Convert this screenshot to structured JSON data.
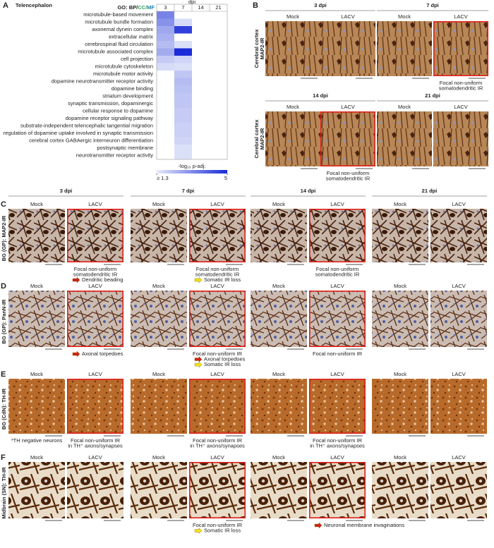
{
  "panel_a": {
    "letter": "A",
    "title": "Telencephalon",
    "go_label": [
      {
        "text": "GO: BP/",
        "color": "#222222"
      },
      {
        "text": "CC/",
        "color": "#3aa55a"
      },
      {
        "text": "MF",
        "color": "#1a7fb0"
      }
    ],
    "column_title": "dpi",
    "columns": [
      "3",
      "7",
      "14",
      "21"
    ],
    "colors": [
      "#e6eafb",
      "#1b2bd8"
    ],
    "rows": [
      {
        "label": "microtubule-based movement",
        "color": "#222222",
        "values": [
          3.3,
          null,
          null,
          null
        ]
      },
      {
        "label": "microtubule bundle formation",
        "color": "#222222",
        "values": [
          3.0,
          1.6,
          null,
          null
        ]
      },
      {
        "label": "axonemal dynein complex",
        "color": "#3aa55a",
        "values": [
          2.6,
          4.6,
          null,
          null
        ]
      },
      {
        "label": "extracellular matrix",
        "color": "#3aa55a",
        "values": [
          2.4,
          null,
          null,
          null
        ]
      },
      {
        "label": "cerebrospinal fluid circulation",
        "color": "#222222",
        "values": [
          2.2,
          1.5,
          null,
          null
        ]
      },
      {
        "label": "microtubule associated complex",
        "color": "#3aa55a",
        "values": [
          2.5,
          5,
          null,
          null
        ]
      },
      {
        "label": "cell projection",
        "color": "#3aa55a",
        "values": [
          1.9,
          1.7,
          null,
          null
        ]
      },
      {
        "label": "microtubule cytoskeleton",
        "color": "#3aa55a",
        "values": [
          1.6,
          1.5,
          null,
          null
        ]
      },
      {
        "label": "microtubule motor activity",
        "color": "#1a7fb0",
        "values": [
          null,
          2.0,
          null,
          null
        ]
      },
      {
        "label": "dopamine neurotransmitter receptor activity",
        "color": "#1a7fb0",
        "values": [
          null,
          2.2,
          null,
          null
        ]
      },
      {
        "label": "dopamine binding",
        "color": "#1a7fb0",
        "values": [
          null,
          2.1,
          null,
          null
        ]
      },
      {
        "label": "striatum development",
        "color": "#222222",
        "values": [
          null,
          2.0,
          null,
          null
        ]
      },
      {
        "label": "synaptic transmission, dopaminergic",
        "color": "#222222",
        "values": [
          null,
          2.0,
          null,
          null
        ]
      },
      {
        "label": "cellular response to dopamine",
        "color": "#222222",
        "values": [
          null,
          1.9,
          null,
          null
        ]
      },
      {
        "label": "dopamine receptor signaling pathway",
        "color": "#222222",
        "values": [
          null,
          1.9,
          null,
          null
        ]
      },
      {
        "label": "substrate-independent telencephalic tangential migration",
        "color": "#222222",
        "values": [
          null,
          1.8,
          null,
          null
        ]
      },
      {
        "label": "regulation of dopamine uptake involved in synaptic transmission",
        "color": "#222222",
        "values": [
          null,
          1.8,
          null,
          null
        ]
      },
      {
        "label": "cerebral cortex GABAergic interneuron differentiation",
        "color": "#222222",
        "values": [
          null,
          1.7,
          null,
          null
        ]
      },
      {
        "label": "postsynaptic membrane",
        "color": "#3aa55a",
        "values": [
          null,
          1.5,
          null,
          null
        ]
      },
      {
        "label": "neurotransmitter receptor activity",
        "color": "#1a7fb0",
        "values": [
          null,
          1.5,
          null,
          null
        ]
      }
    ],
    "legend_title": "-log₁₀ p-adj:",
    "scale": [
      {
        "value": 1.3,
        "label": "≥ 1.3"
      },
      5
    ]
  },
  "panel_b": {
    "letter": "B",
    "rows": [
      {
        "side_label": [
          "Cerebral cortex",
          "MAP2-IR"
        ],
        "groups": [
          {
            "title": "3 dpi",
            "images": [
              {
                "label": "Mock"
              },
              {
                "label": "LACV"
              }
            ]
          },
          {
            "title": "7 dpi",
            "images": [
              {
                "label": "Mock"
              },
              {
                "label": "LACV",
                "highlight": true,
                "caption": [
                  "Focal non-uniform",
                  "somatodendritic IR"
                ]
              }
            ]
          }
        ]
      },
      {
        "side_label": [
          "Cerebral cortex",
          "MAP2-IR"
        ],
        "groups": [
          {
            "title": "14 dpi",
            "images": [
              {
                "label": "Mock"
              },
              {
                "label": "LACV",
                "highlight": true,
                "caption": [
                  "Focal non-uniform",
                  "somatodendritic IR"
                ]
              }
            ]
          },
          {
            "title": "21 dpi",
            "images": [
              {
                "label": "Mock"
              },
              {
                "label": "LACV"
              }
            ]
          }
        ]
      }
    ]
  },
  "panels_cf": {
    "headers": [
      "3 dpi",
      "7 dpi",
      "14 dpi",
      "21 dpi"
    ],
    "panels": [
      {
        "letter": "C",
        "side_label": "BG (GP): MAP2-IR",
        "images": [
          {
            "label": "Mock"
          },
          {
            "label": "LACV",
            "highlight": true,
            "caption": [
              "Focal non-uniform",
              "somatodendritic IR"
            ],
            "markers": [
              {
                "text": "Dendritic beading",
                "color": "#d0201a"
              }
            ]
          },
          {
            "label": "Mock"
          },
          {
            "label": "LACV",
            "highlight": true,
            "caption": [
              "Focal non-uniform",
              "somatodendritic IR"
            ],
            "markers": [
              {
                "text": "Somatic IR loss",
                "color": "#f2e21a"
              }
            ]
          },
          {
            "label": "Mock"
          },
          {
            "label": "LACV",
            "highlight": true,
            "caption": [
              "Focal non-uniform",
              "somatodendritic IR"
            ]
          },
          {
            "label": "Mock"
          },
          {
            "label": "LACV"
          }
        ]
      },
      {
        "letter": "D",
        "side_label": "BG (GP): PanN-IR",
        "images": [
          {
            "label": "Mock"
          },
          {
            "label": "LACV",
            "highlight": true,
            "markers": [
              {
                "text": "Axonal torpedoes",
                "color": "#d0201a"
              }
            ]
          },
          {
            "label": "Mock"
          },
          {
            "label": "LACV",
            "highlight": true,
            "caption": [
              "Focal non-uniform IR"
            ],
            "markers": [
              {
                "text": "Axonal torpedoes",
                "color": "#d0201a"
              },
              {
                "text": "Somatic IR loss",
                "color": "#f2e21a"
              }
            ]
          },
          {
            "label": "Mock"
          },
          {
            "label": "LACV",
            "highlight": true,
            "caption": [
              "Focal non-uniform IR"
            ]
          },
          {
            "label": "Mock"
          },
          {
            "label": "LACV"
          }
        ]
      },
      {
        "letter": "E",
        "side_label": "BG (CdN): TH-IR",
        "images": [
          {
            "label": "Mock",
            "caption": [
              "*TH negative neurons"
            ]
          },
          {
            "label": "LACV",
            "highlight": true,
            "caption": [
              "Focal non-uniform IR",
              "in TH⁺ axons/synapses"
            ]
          },
          {
            "label": "Mock"
          },
          {
            "label": "LACV",
            "highlight": true,
            "caption": [
              "Focal non-uniform IR",
              "in TH⁺ axons/synapses"
            ]
          },
          {
            "label": "Mock"
          },
          {
            "label": "LACV",
            "highlight": true,
            "caption": [
              "Focal non-uniform IR",
              "in TH⁺ axons/synapses"
            ]
          },
          {
            "label": "Mock"
          },
          {
            "label": "LACV"
          }
        ]
      },
      {
        "letter": "F",
        "side_label": "Midbrain (SN): TH-IR",
        "images": [
          {
            "label": "Mock"
          },
          {
            "label": "LACV"
          },
          {
            "label": "Mock"
          },
          {
            "label": "LACV",
            "highlight": true,
            "caption": [
              "Focal non-uniform IR"
            ],
            "markers": [
              {
                "text": "Somatic IR loss",
                "color": "#f2e21a"
              }
            ]
          },
          {
            "label": "Mock"
          },
          {
            "label": "LACV",
            "highlight": true,
            "markers": [
              {
                "text": "Neuronal membrane invaginations",
                "color": "#d0201a"
              }
            ]
          },
          {
            "label": "Mock"
          },
          {
            "label": "LACV"
          }
        ]
      }
    ]
  }
}
